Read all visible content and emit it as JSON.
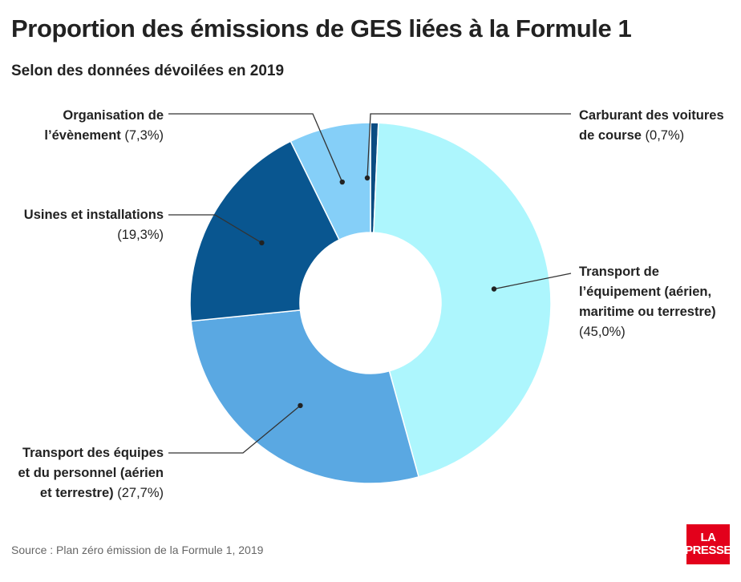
{
  "header": {
    "title": "Proportion des émissions de GES liées à la Formule 1",
    "subtitle": "Selon des données dévoilées en 2019"
  },
  "footer": {
    "source": "Source : Plan zéro émission de la Formule 1, 2019",
    "logo_line1": "LA",
    "logo_line2": "PRESSE"
  },
  "chart_data": {
    "type": "pie",
    "donut": true,
    "start_angle_deg": 0,
    "direction": "clockwise",
    "slices": [
      {
        "name": "Carburant des voitures de course",
        "value": 0.7,
        "pct_label": "(0,7%)",
        "color": "#0a4c82"
      },
      {
        "name": "Transport de l’équipement (aérien, maritime ou terrestre)",
        "value": 45.0,
        "pct_label": "(45,0%)",
        "color": "#adf6fd"
      },
      {
        "name": "Transport des équipes et du personnel (aérien et terrestre)",
        "value": 27.7,
        "pct_label": "(27,7%)",
        "color": "#5aa8e2"
      },
      {
        "name": "Usines et installations",
        "value": 19.3,
        "pct_label": "(19,3%)",
        "color": "#095690"
      },
      {
        "name": "Organisation de l’évènement",
        "value": 7.3,
        "pct_label": "(7,3%)",
        "color": "#85cff8"
      }
    ],
    "labels": {
      "fuel": {
        "l1": "Carburant des voitures",
        "l2": "de course",
        "pct": "(0,7%)"
      },
      "equipment": {
        "l1": "Transport de",
        "l2": "l’équipement (aérien,",
        "l3": "maritime ou terrestre)",
        "pct": "(45,0%)"
      },
      "staff": {
        "l1": "Transport des équipes",
        "l2": "et du personnel (aérien",
        "l3": "et terrestre)",
        "pct": "(27,7%)"
      },
      "factories": {
        "l1": "Usines et installations",
        "pct": "(19,3%)"
      },
      "event": {
        "l1": "Organisation de",
        "l2": "l’évènement",
        "pct": "(7,3%)"
      }
    }
  }
}
